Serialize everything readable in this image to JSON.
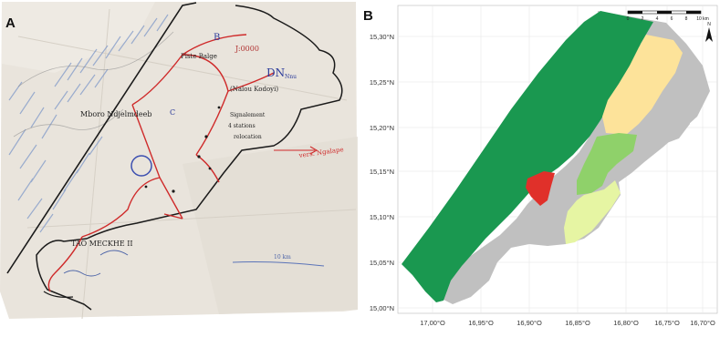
{
  "panels": {
    "left": {
      "letter": "A",
      "annotations": {
        "top_label": "B",
        "top_right": "J:0000",
        "piste": "Piste Balge",
        "dn": "DN",
        "dn_sub": "Nnu",
        "mid_right": "(Nalou Kodoyi)",
        "left_label": "Mboro Ndjelmdeeb",
        "c_label": "C",
        "right_block_1": "Signalement",
        "right_block_2": "4 stations",
        "right_block_3": "relocation",
        "arrow_text": "vers. Ngalape",
        "lower_left": "TAO MECKHE II",
        "scale_note": "10 km"
      }
    },
    "right": {
      "letter": "B",
      "lat_ticks": [
        "15,30°N",
        "15,25°N",
        "15,20°N",
        "15,15°N",
        "15,10°N",
        "15,05°N",
        "15,00°N"
      ],
      "lon_ticks": [
        "17,00°O",
        "16,95°O",
        "16,90°O",
        "16,85°O",
        "16,80°O",
        "16,75°O",
        "16,70°O"
      ],
      "scalebar": {
        "labels": [
          "0",
          "2",
          "4",
          "6",
          "8",
          "10 km"
        ]
      },
      "north_label": "N",
      "colors": {
        "dark_green": "#1a9850",
        "light_green": "#8fd16a",
        "pale_yellow_green": "#e6f5a3",
        "pale_orange": "#fde39a",
        "red": "#e0302a",
        "grey": "#c0c0c0"
      }
    }
  }
}
